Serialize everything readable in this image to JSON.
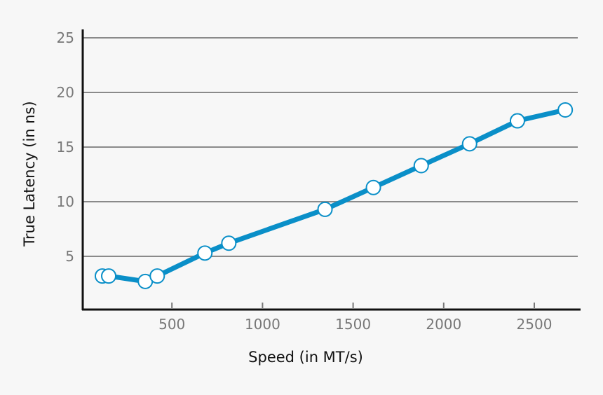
{
  "chart_data": {
    "type": "line",
    "title": "",
    "xlabel": "Speed (in MT/s)",
    "ylabel": "True Latency (in ns)",
    "xlim": [
      0,
      2750
    ],
    "ylim": [
      0,
      25
    ],
    "xticks": [
      500,
      1000,
      1500,
      2000,
      2500
    ],
    "yticks": [
      5,
      10,
      15,
      20,
      25
    ],
    "grid": "horizontal",
    "series": [
      {
        "color": "#0a8fc8",
        "x": [
          116,
          151,
          353,
          419,
          682,
          814,
          1345,
          1612,
          1876,
          2143,
          2407,
          2671
        ],
        "y": [
          3.2,
          3.2,
          2.7,
          3.2,
          5.3,
          6.2,
          9.3,
          11.3,
          13.3,
          15.3,
          17.4,
          18.4
        ]
      }
    ]
  }
}
